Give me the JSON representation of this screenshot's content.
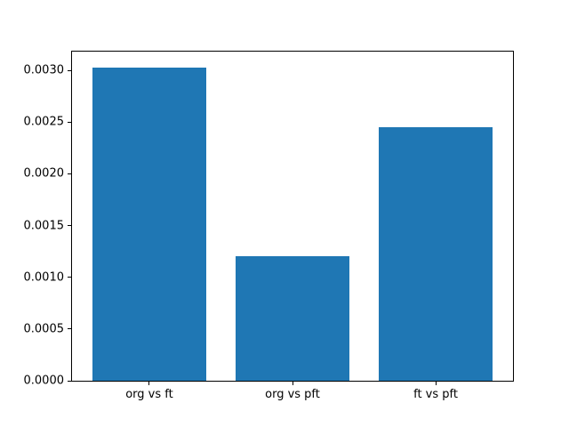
{
  "chart_data": {
    "type": "bar",
    "title": "",
    "xlabel": "",
    "ylabel": "",
    "categories": [
      "org vs ft",
      "org vs pft",
      "ft vs pft"
    ],
    "values": [
      0.00303,
      0.0012,
      0.00245
    ],
    "bar_color": "#1f77b4",
    "bar_width": 0.8,
    "xlim": [
      -0.54,
      2.54
    ],
    "ylim": [
      0,
      0.003182
    ],
    "yticks": [
      0.0,
      0.0005,
      0.001,
      0.0015,
      0.002,
      0.0025,
      0.003
    ],
    "ytick_labels": [
      "0.0000",
      "0.0005",
      "0.0010",
      "0.0015",
      "0.0020",
      "0.0025",
      "0.0030"
    ],
    "grid": false,
    "legend": null,
    "spine_color": "#000000",
    "background_color": "#ffffff"
  }
}
